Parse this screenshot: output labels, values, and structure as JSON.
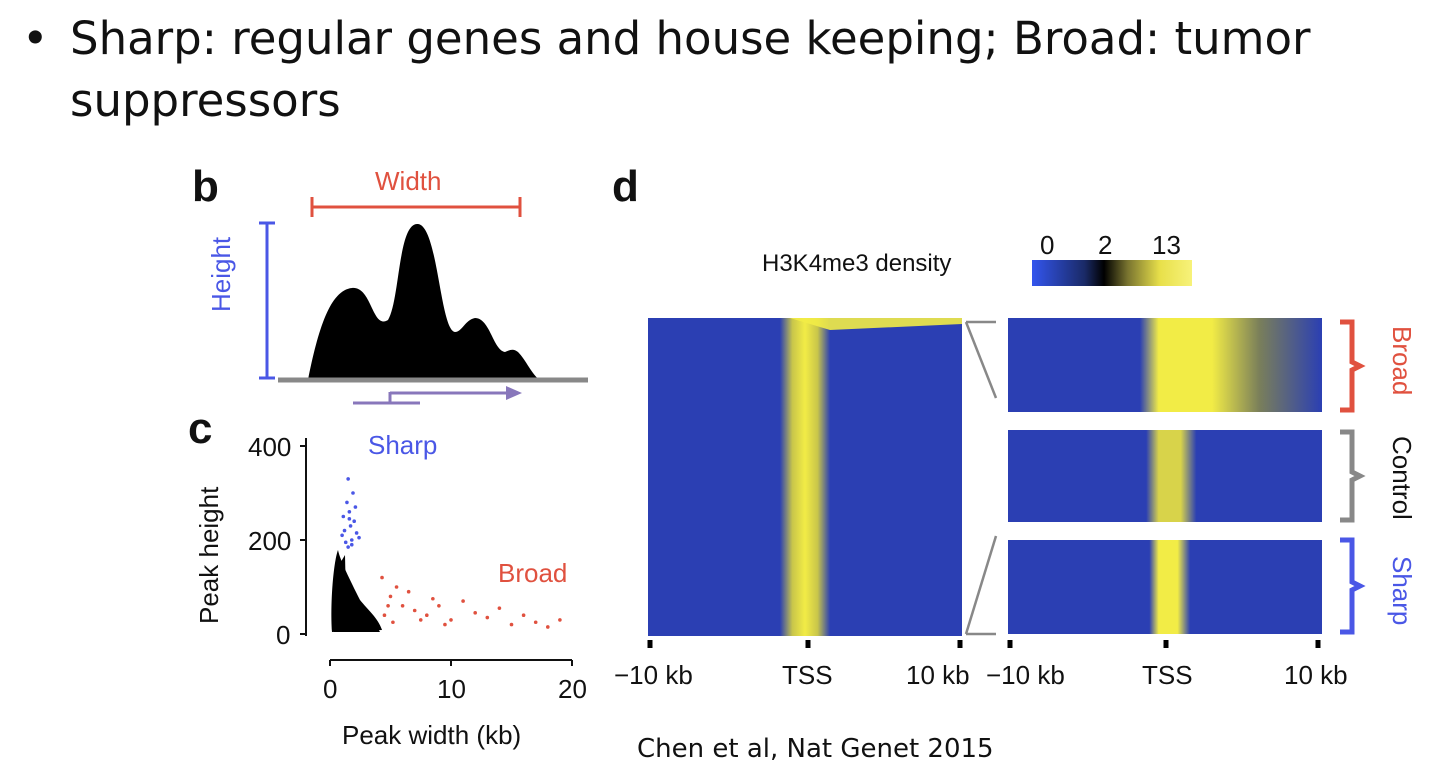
{
  "slide": {
    "bullet": "•",
    "title_line1": "Sharp: regular genes and house keeping; Broad: tumor",
    "title_line2": "suppressors",
    "citation": "Chen et al, Nat Genet 2015"
  },
  "panel_b": {
    "letter": "b",
    "width_label": "Width",
    "height_label": "Height"
  },
  "panel_c": {
    "letter": "c",
    "sharp_label": "Sharp",
    "broad_label": "Broad"
  },
  "panel_d": {
    "letter": "d",
    "colorbar_title": "H3K4me3 density",
    "colorbar_ticks": [
      "0",
      "2",
      "13"
    ],
    "left_xticks": [
      "−10 kb",
      "TSS",
      "10 kb"
    ],
    "right_xticks": [
      "−10 kb",
      "TSS",
      "10 kb"
    ],
    "group_labels": [
      "Broad",
      "Control",
      "Sharp"
    ]
  },
  "colors": {
    "red": "#e0513f",
    "blue": "#4a57e6",
    "gray": "#888888",
    "heat_blue": "#2b3fb3",
    "heat_yellow": "#f2ec46"
  },
  "chart_data": [
    {
      "type": "scatter",
      "xlabel": "Peak width (kb)",
      "ylabel": "Peak height",
      "xlim": [
        0,
        20
      ],
      "ylim": [
        0,
        400
      ],
      "xticks": [
        "0",
        "10",
        "20"
      ],
      "yticks": [
        "0",
        "200",
        "400"
      ],
      "series": [
        {
          "name": "Sharp",
          "color": "#4a57e6",
          "points": [
            [
              1.5,
              185
            ],
            [
              1.8,
              200
            ],
            [
              1.2,
              220
            ],
            [
              2.0,
              240
            ],
            [
              1.6,
              260
            ],
            [
              1.4,
              280
            ],
            [
              1.9,
              300
            ],
            [
              1.3,
              195
            ],
            [
              2.2,
              215
            ],
            [
              1.7,
              230
            ],
            [
              1.1,
              250
            ],
            [
              2.4,
              205
            ],
            [
              1.5,
              330
            ],
            [
              1.8,
              190
            ],
            [
              2.1,
              270
            ],
            [
              1.0,
              210
            ],
            [
              1.6,
              245
            ]
          ]
        },
        {
          "name": "Broad",
          "color": "#e0513f",
          "points": [
            [
              4.5,
              40
            ],
            [
              5,
              80
            ],
            [
              6,
              60
            ],
            [
              7,
              50
            ],
            [
              5.5,
              100
            ],
            [
              8,
              40
            ],
            [
              9,
              60
            ],
            [
              10,
              30
            ],
            [
              12,
              45
            ],
            [
              15,
              20
            ],
            [
              17,
              25
            ],
            [
              19,
              30
            ],
            [
              4.3,
              120
            ],
            [
              6.5,
              90
            ],
            [
              7.5,
              30
            ],
            [
              11,
              70
            ],
            [
              13,
              35
            ],
            [
              14,
              55
            ],
            [
              16,
              40
            ],
            [
              5.2,
              25
            ],
            [
              8.5,
              75
            ],
            [
              9.5,
              20
            ],
            [
              4.8,
              60
            ],
            [
              18,
              15
            ]
          ]
        }
      ]
    }
  ]
}
